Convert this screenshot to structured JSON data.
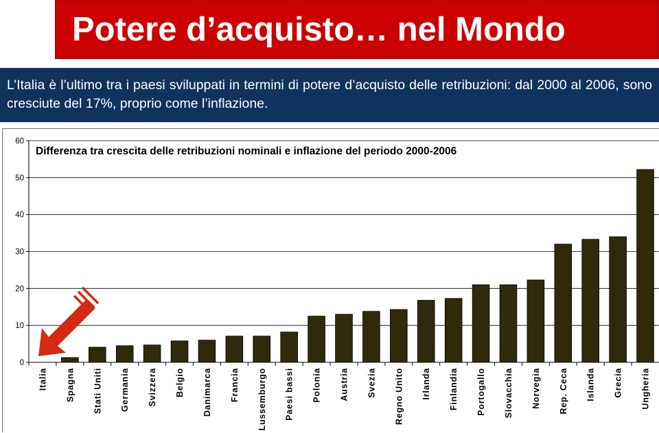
{
  "header": {
    "title": "Potere d’acquisto… nel Mondo",
    "subtitle": "L’Italia è l’ultimo tra i paesi sviluppati in termini di potere d’acquisto delle retribuzioni: dal 2000 al 2006, sono cresciute del 17%, proprio come l’inflazione."
  },
  "colors": {
    "title_bg": "#cc0000",
    "subtitle_bg": "#12325e",
    "bar_fill": "#2f2a0c",
    "arrow": "#d42a12"
  },
  "chart_data": {
    "type": "bar",
    "title": "Differenza tra crescita delle retribuzioni nominali e inflazione del periodo 2000-2006",
    "xlabel": "",
    "ylabel": "",
    "ylim": [
      0,
      60
    ],
    "yticks": [
      0,
      10,
      20,
      30,
      40,
      50,
      60
    ],
    "grid": true,
    "categories": [
      "Italia",
      "Spagna",
      "Stati Uniti",
      "Germania",
      "Svizzera",
      "Belgio",
      "Danimarca",
      "Francia",
      "Lussemburgo",
      "Paesi bassi",
      "Polonia",
      "Austria",
      "Svezia",
      "Regno Unito",
      "Irlanda",
      "Finlandia",
      "Portogallo",
      "Slovacchia",
      "Norvegia",
      "Rep. Ceca",
      "Islanda",
      "Grecia",
      "Ungheria"
    ],
    "values": [
      0,
      1.3,
      4.1,
      4.5,
      4.7,
      5.8,
      6.0,
      7.1,
      7.1,
      8.2,
      12.5,
      13.0,
      13.8,
      14.3,
      16.8,
      17.3,
      21.0,
      21.0,
      22.3,
      32.0,
      33.3,
      34.0,
      52.2
    ],
    "annotation": "arrow pointing to Italia"
  }
}
